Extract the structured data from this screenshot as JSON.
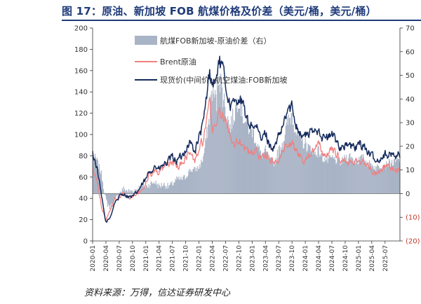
{
  "figure": {
    "title": "图 17：原油、新加坡 FOB 航煤价格及价差（美元/桶，美元/桶）",
    "source": "资料来源：万得，信达证券研发中心"
  },
  "colors": {
    "spread": "#a9b4c6",
    "brent": "#f08080",
    "jet": "#152a5c",
    "neg_label": "#c0392b"
  },
  "chart_data": {
    "type": "line",
    "title": "图 17：原油、新加坡 FOB 航煤价格及价差（美元/桶，美元/桶）",
    "x_range": [
      "2020-01",
      "2025-09"
    ],
    "x_ticks": [
      "2020-01",
      "2020-04",
      "2020-07",
      "2020-10",
      "2021-01",
      "2021-04",
      "2021-07",
      "2021-10",
      "2022-01",
      "2022-04",
      "2022-07",
      "2022-10",
      "2023-01",
      "2023-04",
      "2023-07",
      "2023-10",
      "2024-01",
      "2024-04",
      "2024-07",
      "2024-10",
      "2025-01",
      "2025-04",
      "2025-07"
    ],
    "y_left": {
      "min": 0,
      "max": 200,
      "step": 20,
      "ticks": [
        "0",
        "20",
        "40",
        "60",
        "80",
        "100",
        "120",
        "140",
        "160",
        "180",
        "200"
      ]
    },
    "y_right": {
      "min": -20,
      "max": 70,
      "ticks": [
        "(20)",
        "(10)",
        "0",
        "10",
        "20",
        "30",
        "40",
        "50",
        "60",
        "70"
      ]
    },
    "legend": [
      "航煤FOB新加坡-原油价差（右）",
      "Brent原油",
      "现货价(中间价):航空煤油:FOB新加坡"
    ],
    "series": [
      {
        "name": "航煤FOB新加坡-原油价差（右）",
        "type": "area",
        "axis": "right",
        "x": [
          2020.0,
          2020.08,
          2020.17,
          2020.25,
          2020.33,
          2020.42,
          2020.5,
          2020.58,
          2020.67,
          2020.75,
          2020.83,
          2020.92,
          2021.0,
          2021.08,
          2021.17,
          2021.25,
          2021.33,
          2021.42,
          2021.5,
          2021.58,
          2021.67,
          2021.75,
          2021.83,
          2021.92,
          2022.0,
          2022.08,
          2022.17,
          2022.2,
          2022.25,
          2022.33,
          2022.37,
          2022.42,
          2022.5,
          2022.58,
          2022.67,
          2022.75,
          2022.83,
          2022.92,
          2023.0,
          2023.08,
          2023.17,
          2023.25,
          2023.33,
          2023.42,
          2023.5,
          2023.58,
          2023.67,
          2023.75,
          2023.83,
          2023.92,
          2024.0,
          2024.08,
          2024.17,
          2024.25,
          2024.33,
          2024.42,
          2024.5,
          2024.58,
          2024.67,
          2024.75,
          2024.83,
          2024.92,
          2025.0,
          2025.08,
          2025.17,
          2025.25,
          2025.33,
          2025.42,
          2025.5,
          2025.58,
          2025.67,
          2025.75
        ],
        "values": [
          16,
          14,
          8,
          -3,
          -6,
          -3,
          0,
          2,
          1,
          1,
          2,
          3,
          3,
          4,
          5,
          3,
          4,
          3,
          4,
          6,
          6,
          7,
          10,
          10,
          11,
          15,
          28,
          32,
          45,
          38,
          52,
          46,
          36,
          28,
          34,
          42,
          33,
          28,
          27,
          22,
          16,
          18,
          14,
          13,
          18,
          22,
          30,
          34,
          26,
          22,
          21,
          19,
          17,
          18,
          15,
          14,
          15,
          14,
          13,
          15,
          16,
          14,
          14,
          15,
          13,
          12,
          11,
          12,
          12,
          13,
          13,
          14
        ]
      },
      {
        "name": "Brent原油",
        "type": "line",
        "axis": "left",
        "x": [
          2020.0,
          2020.08,
          2020.17,
          2020.25,
          2020.33,
          2020.42,
          2020.5,
          2020.58,
          2020.67,
          2020.75,
          2020.83,
          2020.92,
          2021.0,
          2021.08,
          2021.17,
          2021.25,
          2021.33,
          2021.42,
          2021.5,
          2021.58,
          2021.67,
          2021.75,
          2021.83,
          2021.92,
          2022.0,
          2022.08,
          2022.17,
          2022.2,
          2022.25,
          2022.33,
          2022.37,
          2022.42,
          2022.5,
          2022.58,
          2022.67,
          2022.75,
          2022.83,
          2022.92,
          2023.0,
          2023.08,
          2023.17,
          2023.25,
          2023.33,
          2023.42,
          2023.5,
          2023.58,
          2023.67,
          2023.75,
          2023.83,
          2023.92,
          2024.0,
          2024.08,
          2024.17,
          2024.25,
          2024.33,
          2024.42,
          2024.5,
          2024.58,
          2024.67,
          2024.75,
          2024.83,
          2024.92,
          2025.0,
          2025.08,
          2025.17,
          2025.25,
          2025.33,
          2025.42,
          2025.5,
          2025.58,
          2025.67,
          2025.75
        ],
        "values": [
          66,
          57,
          33,
          20,
          30,
          40,
          42,
          44,
          41,
          40,
          43,
          49,
          54,
          62,
          66,
          64,
          67,
          71,
          74,
          70,
          72,
          80,
          83,
          74,
          86,
          94,
          117,
          128,
          104,
          112,
          120,
          118,
          112,
          100,
          93,
          95,
          93,
          82,
          83,
          84,
          78,
          84,
          76,
          74,
          79,
          85,
          93,
          91,
          85,
          78,
          78,
          82,
          85,
          89,
          83,
          82,
          85,
          80,
          76,
          75,
          73,
          73,
          76,
          76,
          71,
          67,
          63,
          67,
          70,
          68,
          68,
          67
        ]
      },
      {
        "name": "现货价(中间价):航空煤油:FOB新加坡",
        "type": "line",
        "axis": "left",
        "x": [
          2020.0,
          2020.08,
          2020.17,
          2020.25,
          2020.33,
          2020.42,
          2020.5,
          2020.58,
          2020.67,
          2020.75,
          2020.83,
          2020.92,
          2021.0,
          2021.08,
          2021.17,
          2021.25,
          2021.33,
          2021.42,
          2021.5,
          2021.58,
          2021.67,
          2021.75,
          2021.83,
          2021.92,
          2022.0,
          2022.08,
          2022.17,
          2022.2,
          2022.25,
          2022.33,
          2022.37,
          2022.42,
          2022.5,
          2022.58,
          2022.67,
          2022.75,
          2022.83,
          2022.92,
          2023.0,
          2023.08,
          2023.17,
          2023.25,
          2023.33,
          2023.42,
          2023.5,
          2023.58,
          2023.67,
          2023.75,
          2023.83,
          2023.92,
          2024.0,
          2024.08,
          2024.17,
          2024.25,
          2024.33,
          2024.42,
          2024.5,
          2024.58,
          2024.67,
          2024.75,
          2024.83,
          2024.92,
          2025.0,
          2025.08,
          2025.17,
          2025.25,
          2025.33,
          2025.42,
          2025.5,
          2025.58,
          2025.67,
          2025.75
        ],
        "values": [
          82,
          70,
          40,
          17,
          22,
          37,
          41,
          45,
          42,
          41,
          45,
          52,
          57,
          66,
          71,
          67,
          71,
          74,
          78,
          76,
          78,
          87,
          93,
          84,
          97,
          109,
          145,
          160,
          149,
          150,
          172,
          164,
          148,
          128,
          127,
          137,
          126,
          110,
          110,
          106,
          94,
          102,
          90,
          87,
          97,
          107,
          123,
          125,
          111,
          100,
          99,
          101,
          102,
          107,
          98,
          96,
          100,
          94,
          89,
          90,
          89,
          87,
          90,
          91,
          84,
          79,
          74,
          79,
          82,
          81,
          81,
          81
        ]
      }
    ]
  }
}
